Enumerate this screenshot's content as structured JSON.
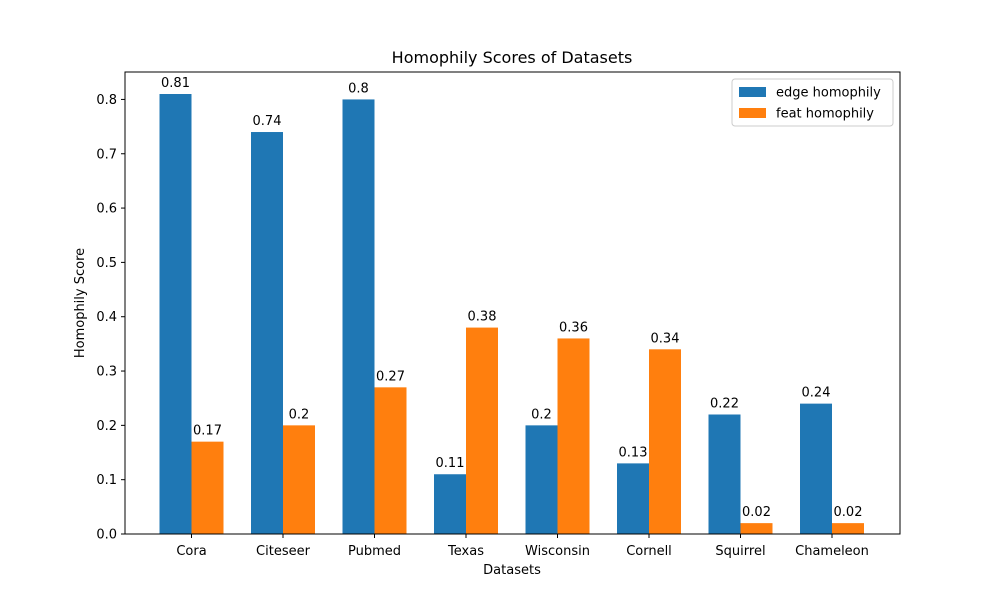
{
  "chart_data": {
    "type": "bar",
    "title": "Homophily Scores of Datasets",
    "xlabel": "Datasets",
    "ylabel": "Homophily Score",
    "categories": [
      "Cora",
      "Citeseer",
      "Pubmed",
      "Texas",
      "Wisconsin",
      "Cornell",
      "Squirrel",
      "Chameleon"
    ],
    "series": [
      {
        "name": "edge homophily",
        "color": "#1f77b4",
        "values": [
          0.81,
          0.74,
          0.8,
          0.11,
          0.2,
          0.13,
          0.22,
          0.24
        ]
      },
      {
        "name": "feat homophily",
        "color": "#ff7f0e",
        "values": [
          0.17,
          0.2,
          0.27,
          0.38,
          0.36,
          0.34,
          0.02,
          0.02
        ]
      }
    ],
    "ylim": [
      0,
      0.8505
    ],
    "yticks": [
      "0.0",
      "0.1",
      "0.2",
      "0.3",
      "0.4",
      "0.5",
      "0.6",
      "0.7",
      "0.8"
    ],
    "grid": false,
    "legend_position": "top-right"
  }
}
